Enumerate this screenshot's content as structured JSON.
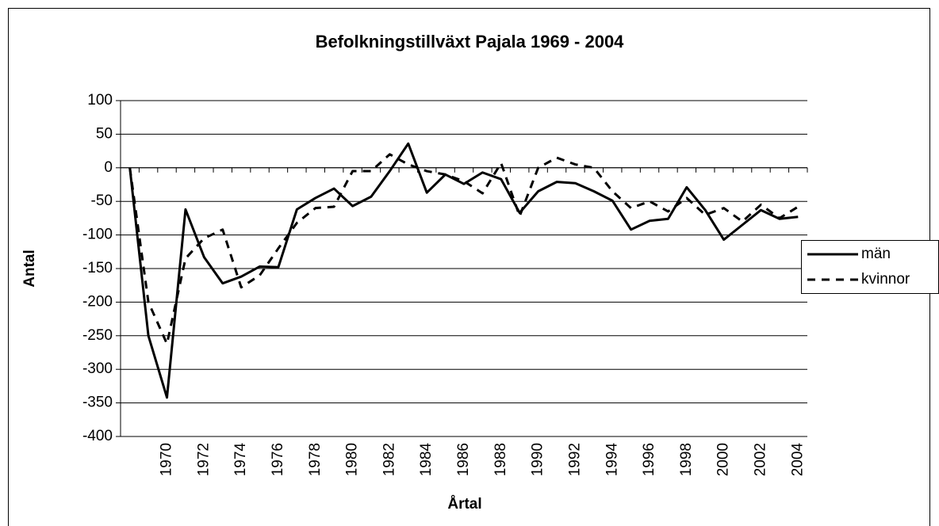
{
  "chart_data": {
    "type": "line",
    "title": "Befolkningstillväxt Pajala 1969 - 2004",
    "x_label": "Årtal",
    "y_label": "Antal",
    "categories": [
      null,
      null,
      "1970",
      null,
      "1972",
      null,
      "1974",
      null,
      "1976",
      null,
      "1978",
      null,
      "1980",
      null,
      "1982",
      null,
      "1984",
      null,
      "1986",
      null,
      "1988",
      null,
      "1990",
      null,
      "1992",
      null,
      "1994",
      null,
      "1996",
      null,
      "1998",
      null,
      "2000",
      null,
      "2002",
      null,
      "2004"
    ],
    "series": [
      {
        "name": "män",
        "color": "#000000",
        "dash": "solid",
        "values": [
          0,
          -250,
          -342,
          -62,
          -133,
          -172,
          -162,
          -147,
          -148,
          -62,
          -45,
          -31,
          -57,
          -43,
          -5,
          36,
          -37,
          -10,
          -24,
          -7,
          -17,
          -67,
          -35,
          -21,
          -23,
          -35,
          -49,
          -92,
          -79,
          -76,
          -29,
          -63,
          -107,
          -85,
          -63,
          -76,
          -73
        ]
      },
      {
        "name": "kvinnor",
        "color": "#000000",
        "dash": "dashed",
        "values": [
          0,
          -200,
          -262,
          -135,
          -105,
          -92,
          -178,
          -160,
          -120,
          -82,
          -60,
          -58,
          -5,
          -5,
          20,
          5,
          -5,
          -10,
          -20,
          -38,
          7,
          -72,
          0,
          15,
          5,
          0,
          -35,
          -60,
          -50,
          -65,
          -45,
          -70,
          -60,
          -80,
          -55,
          -75,
          -58
        ]
      }
    ],
    "ylim": [
      -400,
      100
    ],
    "yticks": [
      -400,
      -350,
      -300,
      -250,
      -200,
      -150,
      -100,
      -50,
      0,
      50,
      100
    ],
    "grid": true,
    "legend": "right"
  }
}
